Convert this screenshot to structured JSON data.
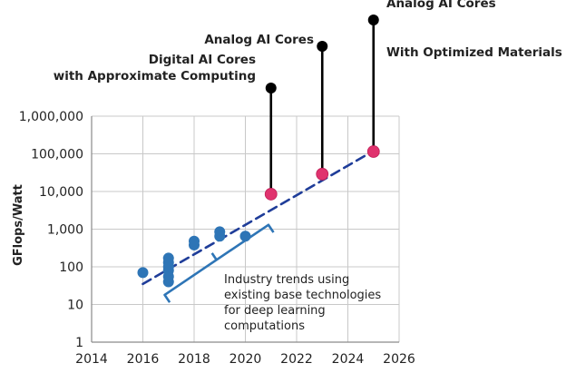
{
  "chart_data": {
    "type": "scatter",
    "title": "",
    "xlabel": "",
    "ylabel": "GFlops/Watt",
    "xlim": [
      2014,
      2026
    ],
    "ylim": [
      1,
      1000000
    ],
    "y_scale": "log",
    "grid": true,
    "x_ticks": [
      "2014",
      "2016",
      "2018",
      "2020",
      "2022",
      "2024",
      "2026"
    ],
    "y_ticks": [
      "1",
      "10",
      "100",
      "1,000",
      "10,000",
      "100,000",
      "1,000,000"
    ],
    "series": [
      {
        "color": "#2e75b6",
        "points": [
          {
            "x": 2016,
            "y": 70
          },
          {
            "x": 2017,
            "y": 40
          },
          {
            "x": 2017,
            "y": 55
          },
          {
            "x": 2017,
            "y": 80
          },
          {
            "x": 2017,
            "y": 100
          },
          {
            "x": 2017,
            "y": 130
          },
          {
            "x": 2017,
            "y": 170
          },
          {
            "x": 2018,
            "y": 380
          },
          {
            "x": 2018,
            "y": 480
          },
          {
            "x": 2019,
            "y": 650
          },
          {
            "x": 2019,
            "y": 850
          },
          {
            "x": 2020,
            "y": 650
          }
        ]
      },
      {
        "color": "#e0336e",
        "points": [
          {
            "x": 2021,
            "y": 8500
          },
          {
            "x": 2023,
            "y": 29000
          },
          {
            "x": 2025,
            "y": 115000
          }
        ]
      }
    ],
    "trendline": {
      "color": "#1f3d99",
      "style": "dashed",
      "from": {
        "x": 2016,
        "y": 35
      },
      "to": {
        "x": 2025,
        "y": 120000
      }
    },
    "annotations": [
      {
        "x": 2021,
        "pin_y": 400000,
        "lines": [
          "Digital AI Cores",
          "with Approximate Computing"
        ]
      },
      {
        "x": 2023,
        "pin_y": 12000000,
        "lines": [
          "Analog AI Cores"
        ]
      },
      {
        "x": 2025,
        "pin_y": 28000000,
        "lines": [
          "Analog AI Cores",
          "With Optimized Materials"
        ]
      }
    ],
    "bracket": {
      "color": "#2e75b6",
      "lines": [
        "Industry trends using",
        "existing base technologies",
        "for deep learning",
        "computations"
      ]
    }
  }
}
